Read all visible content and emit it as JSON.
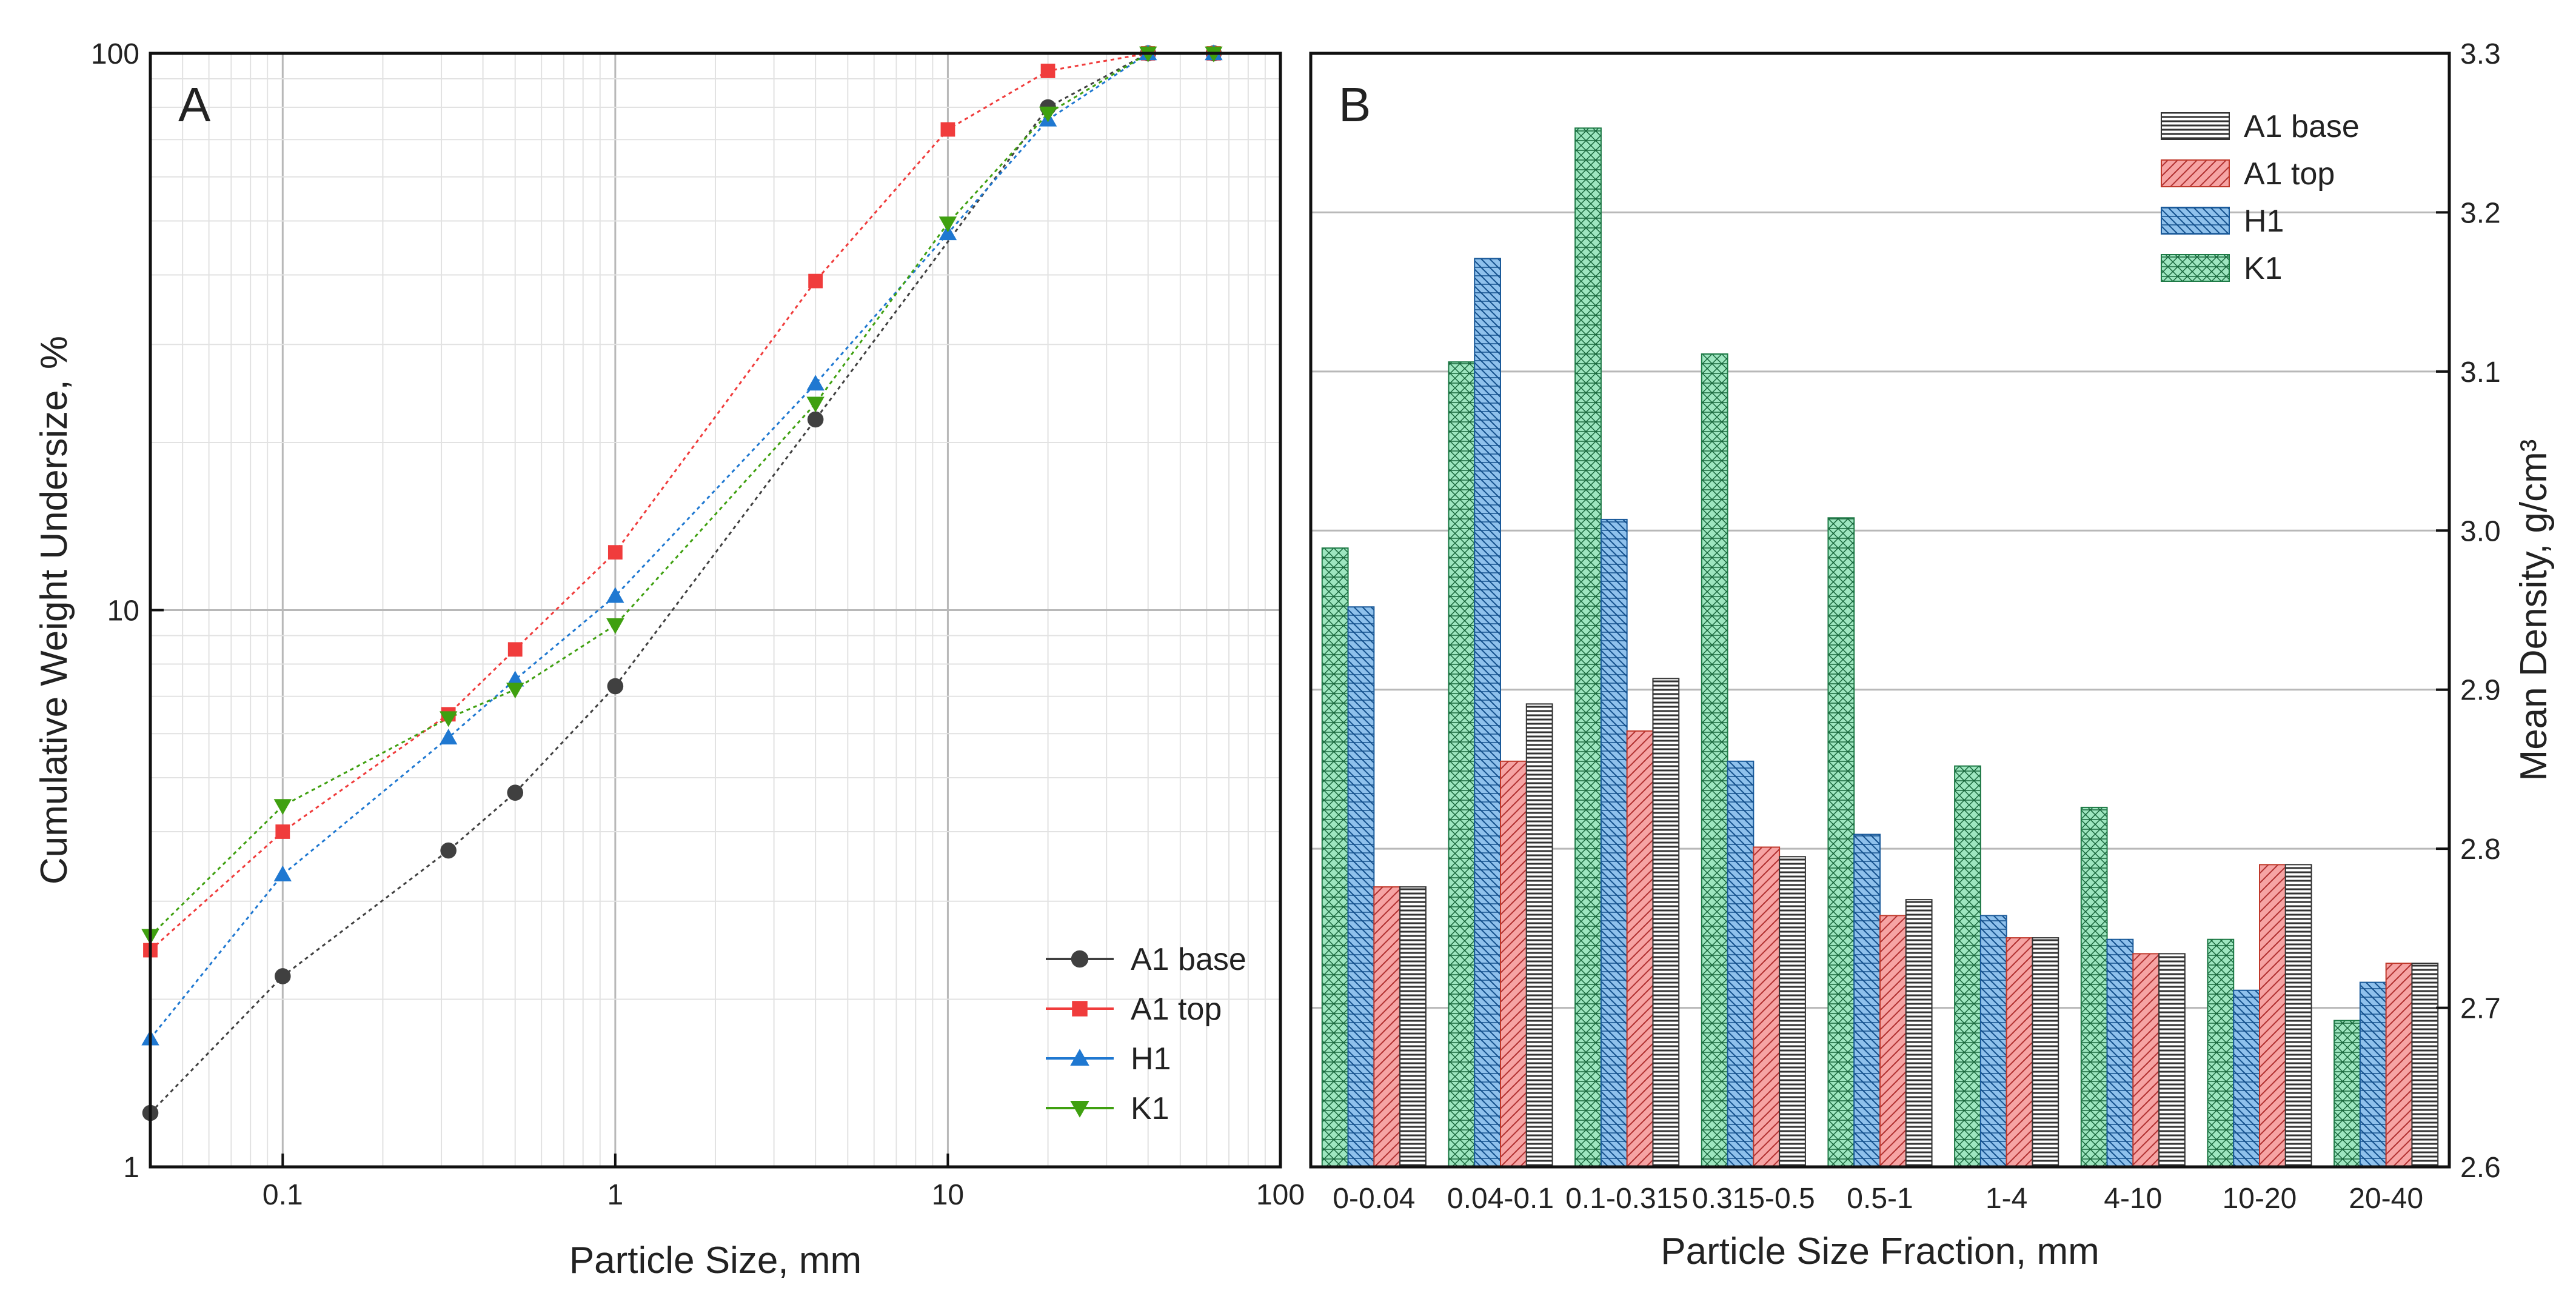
{
  "chart_data": [
    {
      "type": "line",
      "panel_label": "A",
      "xlabel": "Particle Size, mm",
      "ylabel": "Cumulative Weight Undersize, %",
      "xscale": "log",
      "yscale": "log",
      "xlim": [
        0.04,
        100
      ],
      "ylim": [
        1,
        100
      ],
      "x_ticks": [
        0.1,
        1,
        10,
        100
      ],
      "x_tick_labels": [
        "0.1",
        "1",
        "10",
        "100"
      ],
      "y_ticks": [
        1,
        10,
        100
      ],
      "y_tick_labels": [
        "1",
        "10",
        "100"
      ],
      "grid": true,
      "legend_position": "bottom-right",
      "series": [
        {
          "name": "A1 base",
          "color": "#404040",
          "marker": "circle",
          "x": [
            0.04,
            0.1,
            0.315,
            0.5,
            1,
            4,
            20,
            40,
            63
          ],
          "y": [
            1.25,
            2.2,
            3.7,
            4.7,
            7.3,
            22,
            80,
            100,
            100
          ]
        },
        {
          "name": "A1 top",
          "color": "#f03c3c",
          "marker": "square",
          "x": [
            0.04,
            0.1,
            0.315,
            0.5,
            1,
            4,
            10,
            20,
            40,
            63
          ],
          "y": [
            2.45,
            4.0,
            6.5,
            8.5,
            12.7,
            39,
            73,
            93,
            100,
            100
          ]
        },
        {
          "name": "H1",
          "color": "#1f78d1",
          "marker": "triangle-up",
          "x": [
            0.04,
            0.1,
            0.315,
            0.5,
            1,
            4,
            10,
            20,
            40,
            63
          ],
          "y": [
            1.7,
            3.35,
            5.9,
            7.5,
            10.6,
            25.5,
            47.5,
            76,
            100,
            100
          ]
        },
        {
          "name": "K1",
          "color": "#3fa010",
          "marker": "triangle-down",
          "x": [
            0.04,
            0.1,
            0.315,
            0.5,
            1,
            4,
            10,
            20,
            40,
            63
          ],
          "y": [
            2.6,
            4.45,
            6.4,
            7.2,
            9.4,
            23.5,
            49.5,
            78,
            100,
            100
          ]
        }
      ]
    },
    {
      "type": "bar",
      "panel_label": "B",
      "xlabel": "Particle Size Fraction, mm",
      "ylabel": "Mean Density, g/cm³",
      "ylim": [
        2.6,
        3.3
      ],
      "y_ticks": [
        2.6,
        2.7,
        2.8,
        2.9,
        3.0,
        3.1,
        3.2,
        3.3
      ],
      "y_tick_labels": [
        "2.6",
        "2.7",
        "2.8",
        "2.9",
        "3.0",
        "3.1",
        "3.2",
        "3.3"
      ],
      "y_axis_side": "right",
      "grid": true,
      "legend_position": "top-right",
      "categories": [
        "0-0.04",
        "0.04-0.1",
        "0.1-0.315",
        "0.315-0.5",
        "0.5-1",
        "1-4",
        "4-10",
        "10-20",
        "20-40"
      ],
      "bar_order": [
        "K1",
        "H1",
        "A1 top",
        "A1 base"
      ],
      "series": [
        {
          "name": "A1 base",
          "color": "#d9d9d9",
          "stroke": "#333333",
          "hatch": "horizontal",
          "values": [
            2.776,
            2.891,
            2.907,
            2.795,
            2.768,
            2.744,
            2.734,
            2.79,
            2.728
          ]
        },
        {
          "name": "A1 top",
          "color": "#f3a3a3",
          "stroke": "#c0392b",
          "hatch": "diagonal",
          "values": [
            2.776,
            2.855,
            2.874,
            2.801,
            2.758,
            2.744,
            2.734,
            2.79,
            2.728
          ]
        },
        {
          "name": "H1",
          "color": "#9cc7ea",
          "stroke": "#1a5a9a",
          "hatch": "back-diagonal",
          "values": [
            2.952,
            3.171,
            3.007,
            2.855,
            2.809,
            2.758,
            2.743,
            2.711,
            2.716
          ]
        },
        {
          "name": "K1",
          "color": "#a6e6c4",
          "stroke": "#1e7a46",
          "hatch": "cross",
          "values": [
            2.989,
            3.106,
            3.253,
            3.111,
            3.008,
            2.852,
            2.826,
            2.743,
            2.692
          ]
        }
      ]
    }
  ]
}
